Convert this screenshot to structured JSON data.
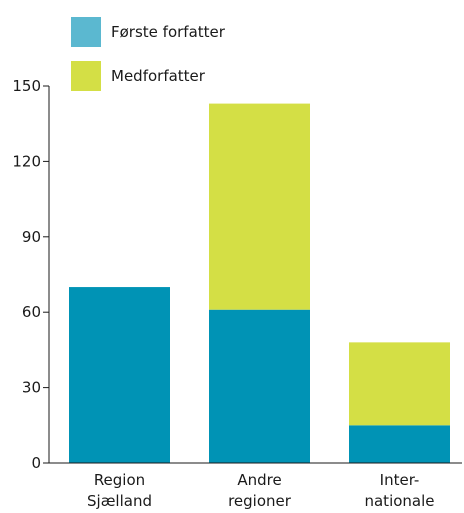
{
  "chart_data": {
    "type": "bar",
    "stacked": true,
    "categories": [
      [
        "Region",
        "Sjælland"
      ],
      [
        "Andre",
        "regioner"
      ],
      [
        "Inter-",
        "nationale"
      ]
    ],
    "series": [
      {
        "name": "Første forfatter",
        "values": [
          70,
          61,
          15
        ],
        "color": "#0093b5",
        "legend_color": "#5bb8d0"
      },
      {
        "name": "Medforfatter",
        "values": [
          0,
          82,
          33
        ],
        "color": "#d4df45"
      }
    ],
    "yticks": [
      0,
      30,
      60,
      90,
      120,
      150
    ],
    "ylim": [
      0,
      150
    ],
    "grid": false,
    "legend_position": "top-left"
  }
}
